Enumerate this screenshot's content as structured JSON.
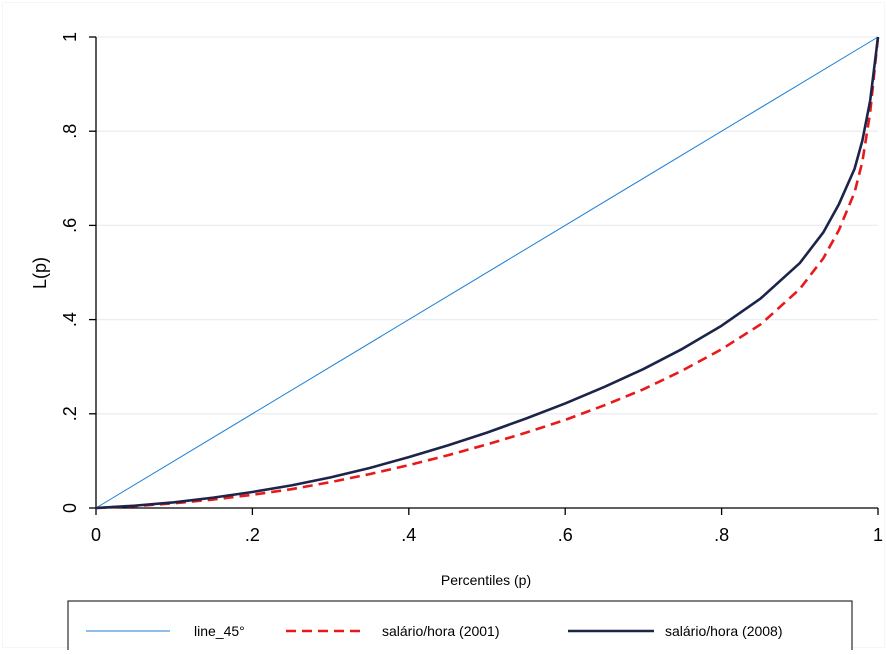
{
  "chart_data": {
    "type": "line",
    "title": "",
    "xlabel": "Percentiles (p)",
    "ylabel": "L(p)",
    "xlim": [
      0,
      1
    ],
    "ylim": [
      0,
      1
    ],
    "x_ticks": [
      0,
      0.2,
      0.4,
      0.6,
      0.8,
      1
    ],
    "x_tick_labels": [
      "0",
      ".2",
      ".4",
      ".6",
      ".8",
      "1"
    ],
    "y_ticks": [
      0,
      0.2,
      0.4,
      0.6,
      0.8,
      1
    ],
    "y_tick_labels": [
      "0",
      ".2",
      ".4",
      ".6",
      ".8",
      "1"
    ],
    "grid": "horizontal",
    "legend_position": "bottom",
    "series": [
      {
        "name": "line_45°",
        "color": "#1e7fd6",
        "style": "solid-thin",
        "x": [
          0,
          1
        ],
        "y": [
          0,
          1
        ]
      },
      {
        "name": "salário/hora (2001)",
        "color": "#e8191b",
        "style": "dashed",
        "x": [
          0,
          0.05,
          0.1,
          0.15,
          0.2,
          0.25,
          0.3,
          0.35,
          0.4,
          0.45,
          0.5,
          0.55,
          0.6,
          0.65,
          0.7,
          0.75,
          0.8,
          0.85,
          0.9,
          0.93,
          0.95,
          0.97,
          0.98,
          0.99,
          1.0
        ],
        "y": [
          0,
          0.004,
          0.01,
          0.018,
          0.028,
          0.04,
          0.055,
          0.072,
          0.091,
          0.112,
          0.135,
          0.16,
          0.187,
          0.218,
          0.252,
          0.292,
          0.337,
          0.39,
          0.465,
          0.53,
          0.59,
          0.67,
          0.735,
          0.84,
          1.0
        ]
      },
      {
        "name": "salário/hora (2008)",
        "color": "#1c2449",
        "style": "solid-thick",
        "x": [
          0,
          0.05,
          0.1,
          0.15,
          0.2,
          0.25,
          0.3,
          0.35,
          0.4,
          0.45,
          0.5,
          0.55,
          0.6,
          0.65,
          0.7,
          0.75,
          0.8,
          0.85,
          0.9,
          0.93,
          0.95,
          0.97,
          0.98,
          0.99,
          1.0
        ],
        "y": [
          0,
          0.005,
          0.012,
          0.022,
          0.034,
          0.048,
          0.065,
          0.085,
          0.108,
          0.133,
          0.16,
          0.19,
          0.222,
          0.257,
          0.295,
          0.338,
          0.387,
          0.445,
          0.52,
          0.585,
          0.645,
          0.72,
          0.78,
          0.865,
          1.0
        ]
      }
    ]
  }
}
